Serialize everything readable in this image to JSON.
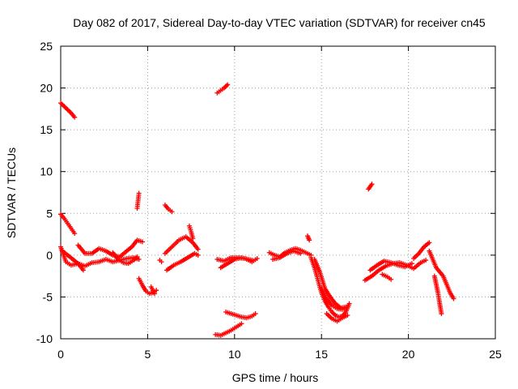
{
  "chart_data": {
    "type": "scatter",
    "title": "Day 082 of 2017, Sidereal Day-to-day VTEC variation (SDTVAR) for receiver cn45",
    "xlabel": "GPS time / hours",
    "ylabel": "SDTVAR / TECUs",
    "xlim": [
      0,
      25
    ],
    "ylim": [
      -10,
      25
    ],
    "xticks": [
      0,
      5,
      10,
      15,
      20,
      25
    ],
    "yticks": [
      -10,
      -5,
      0,
      5,
      10,
      15,
      20,
      25
    ],
    "xtick_labels": [
      "0",
      "5",
      "10",
      "15",
      "20",
      "25"
    ],
    "ytick_labels": [
      "-10",
      "-5",
      "0",
      "5",
      "10",
      "15",
      "20",
      "25"
    ],
    "grid": true,
    "marker": "+",
    "color": "#ff0000",
    "segments": [
      {
        "x": [
          0.0,
          0.2,
          0.4,
          0.6,
          0.8
        ],
        "y": [
          18.2,
          17.8,
          17.4,
          17.0,
          16.5
        ]
      },
      {
        "x": [
          0.0,
          0.2,
          0.4,
          0.6,
          0.8
        ],
        "y": [
          4.9,
          4.4,
          3.8,
          3.2,
          2.6
        ]
      },
      {
        "x": [
          0.0,
          0.3,
          0.6,
          1.0,
          1.4,
          1.8,
          2.2,
          2.6,
          3.0,
          3.4,
          3.8,
          4.2,
          4.5
        ],
        "y": [
          1.0,
          -0.8,
          -1.2,
          -1.0,
          -1.3,
          -0.9,
          -0.8,
          -0.5,
          -0.8,
          -0.6,
          -0.4,
          -0.3,
          -0.5
        ]
      },
      {
        "x": [
          0.1,
          0.4,
          0.7,
          1.0,
          1.3
        ],
        "y": [
          0.5,
          0.0,
          -0.5,
          -1.0,
          -1.8
        ]
      },
      {
        "x": [
          1.0,
          1.4,
          1.8,
          2.2,
          2.6,
          3.0,
          3.4,
          3.8,
          4.1,
          4.4,
          4.7
        ],
        "y": [
          1.2,
          0.2,
          0.2,
          0.8,
          0.5,
          0.0,
          -0.2,
          0.5,
          1.0,
          1.8,
          1.6
        ]
      },
      {
        "x": [
          3.0,
          3.3,
          3.6,
          3.9,
          4.2,
          4.4
        ],
        "y": [
          0.3,
          -0.5,
          -0.9,
          -1.0,
          -0.6,
          -0.2
        ]
      },
      {
        "x": [
          4.4,
          4.45,
          4.5
        ],
        "y": [
          5.6,
          6.5,
          7.4
        ]
      },
      {
        "x": [
          4.5,
          4.7,
          4.9,
          5.1,
          5.3,
          5.5
        ],
        "y": [
          -2.8,
          -3.6,
          -4.3,
          -4.6,
          -4.5,
          -4.2
        ]
      },
      {
        "x": [
          5.2,
          5.4
        ],
        "y": [
          -3.8,
          -4.6
        ]
      },
      {
        "x": [
          5.7,
          5.8
        ],
        "y": [
          -0.6,
          -0.8
        ]
      },
      {
        "x": [
          6.0,
          6.2,
          6.4
        ],
        "y": [
          6.0,
          5.5,
          5.2
        ]
      },
      {
        "x": [
          6.0,
          6.4,
          6.8,
          7.2,
          7.6,
          7.9
        ],
        "y": [
          0.2,
          1.0,
          1.8,
          2.2,
          1.5,
          0.7
        ]
      },
      {
        "x": [
          6.1,
          6.5,
          6.9,
          7.3,
          7.7,
          7.9
        ],
        "y": [
          -1.8,
          -1.2,
          -0.8,
          -0.3,
          0.2,
          0.0
        ]
      },
      {
        "x": [
          7.4,
          7.5,
          7.6
        ],
        "y": [
          3.5,
          2.8,
          2.0
        ]
      },
      {
        "x": [
          8.9,
          9.2,
          9.5,
          9.8,
          10.1,
          10.4
        ],
        "y": [
          -9.5,
          -9.6,
          -9.3,
          -9.0,
          -8.6,
          -8.2
        ]
      },
      {
        "x": [
          9.0,
          9.2,
          9.4,
          9.6
        ],
        "y": [
          19.4,
          19.7,
          20.0,
          20.4
        ]
      },
      {
        "x": [
          9.0,
          9.4,
          9.8,
          10.2,
          10.6,
          11.0,
          11.3
        ],
        "y": [
          -0.5,
          -0.7,
          -0.3,
          -0.3,
          -0.4,
          -0.8,
          -0.4
        ]
      },
      {
        "x": [
          9.2,
          9.6,
          10.0,
          10.4,
          10.8,
          11.0
        ],
        "y": [
          -1.5,
          -1.0,
          -0.5,
          -0.3,
          -0.5,
          -0.6
        ]
      },
      {
        "x": [
          9.5,
          9.8,
          10.1,
          10.4,
          10.7,
          11.0,
          11.2
        ],
        "y": [
          -6.8,
          -7.0,
          -7.2,
          -7.4,
          -7.5,
          -7.3,
          -7.0
        ]
      },
      {
        "x": [
          12.0,
          12.3,
          12.6,
          12.9,
          13.2,
          13.5,
          13.8,
          14.1,
          14.4
        ],
        "y": [
          0.3,
          0.0,
          -0.2,
          0.3,
          0.6,
          0.8,
          0.6,
          0.3,
          0.0
        ]
      },
      {
        "x": [
          12.2,
          12.6,
          13.0,
          13.4,
          13.8
        ],
        "y": [
          -0.5,
          -0.3,
          0.2,
          0.5,
          0.2
        ]
      },
      {
        "x": [
          14.2,
          14.3
        ],
        "y": [
          2.3,
          1.8
        ]
      },
      {
        "x": [
          14.4,
          14.6,
          14.8,
          15.0,
          15.2,
          15.4,
          15.6,
          15.8,
          16.0,
          16.2,
          16.4,
          16.6
        ],
        "y": [
          -0.3,
          -1.5,
          -3.0,
          -4.5,
          -5.5,
          -6.2,
          -6.8,
          -7.2,
          -7.4,
          -7.3,
          -6.8,
          -5.8
        ]
      },
      {
        "x": [
          14.6,
          14.9,
          15.2,
          15.5,
          15.8,
          16.1,
          16.4
        ],
        "y": [
          -0.5,
          -2.0,
          -4.0,
          -5.0,
          -5.8,
          -6.3,
          -6.2
        ]
      },
      {
        "x": [
          15.0,
          15.3,
          15.6,
          15.9,
          16.2,
          16.5
        ],
        "y": [
          -4.0,
          -5.2,
          -6.0,
          -6.4,
          -6.5,
          -6.2
        ]
      },
      {
        "x": [
          15.3,
          15.6,
          15.9,
          16.2,
          16.5
        ],
        "y": [
          -7.0,
          -7.6,
          -7.9,
          -7.5,
          -7.2
        ]
      },
      {
        "x": [
          17.7,
          17.8,
          17.9
        ],
        "y": [
          7.9,
          8.2,
          8.5
        ]
      },
      {
        "x": [
          17.5,
          17.9,
          18.3,
          18.7,
          19.1,
          19.5,
          19.9,
          20.3,
          20.7,
          21.0
        ],
        "y": [
          -3.0,
          -2.5,
          -1.8,
          -1.3,
          -1.0,
          -0.9,
          -1.2,
          -1.6,
          -0.9,
          -0.6
        ]
      },
      {
        "x": [
          17.8,
          18.2,
          18.6,
          19.0,
          19.4,
          19.8,
          20.2
        ],
        "y": [
          -1.8,
          -1.2,
          -0.7,
          -0.9,
          -1.2,
          -1.4,
          -1.0
        ]
      },
      {
        "x": [
          18.5,
          18.8,
          19.0
        ],
        "y": [
          -2.3,
          -2.6,
          -2.9
        ]
      },
      {
        "x": [
          20.3,
          20.6,
          20.9,
          21.2
        ],
        "y": [
          -0.4,
          0.2,
          1.0,
          1.5
        ]
      },
      {
        "x": [
          21.2,
          21.4,
          21.6,
          21.8,
          22.0,
          22.2,
          22.4,
          22.6
        ],
        "y": [
          0.5,
          -0.5,
          -1.5,
          -2.0,
          -2.5,
          -3.5,
          -4.5,
          -5.2
        ]
      },
      {
        "x": [
          21.5,
          21.6,
          21.7,
          21.8,
          21.9
        ],
        "y": [
          -2.5,
          -3.5,
          -4.5,
          -5.8,
          -7.0
        ]
      }
    ]
  }
}
